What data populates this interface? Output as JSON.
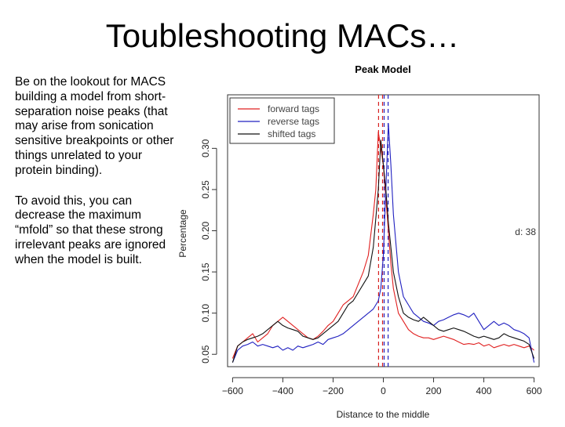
{
  "slide": {
    "title": "Toubleshooting MACs…",
    "paragraph1": "Be on the lookout for MACS building a model from short-separation noise peaks (that may arise from sonication sensitive breakpoints or other things unrelated to your protein binding).",
    "paragraph2": "To avoid this, you can decrease the maximum “mfold” so that these strong irrelevant peaks are ignored when the model is built."
  },
  "chart_data": {
    "type": "line",
    "title": "Peak Model",
    "xlabel": "Distance to the middle",
    "ylabel": "Percentage",
    "xlim": [
      -620,
      620
    ],
    "ylim": [
      0.035,
      0.365
    ],
    "xticks": [
      -600,
      -400,
      -200,
      0,
      200,
      400,
      600
    ],
    "xtick_labels": [
      "−600",
      "−400",
      "−200",
      "0",
      "200",
      "400",
      "600"
    ],
    "yticks": [
      0.05,
      0.1,
      0.15,
      0.2,
      0.25,
      0.3
    ],
    "ytick_labels": [
      "0.05",
      "0.10",
      "0.15",
      "0.20",
      "0.25",
      "0.30"
    ],
    "annotation": "d: 38",
    "legend_position": "top-left",
    "grid": false,
    "vlines": [
      {
        "x": -19,
        "color": "#d62020"
      },
      {
        "x": 0,
        "color": "#d62020"
      },
      {
        "x": 0,
        "color": "#2020c0"
      },
      {
        "x": 19,
        "color": "#2020c0"
      }
    ],
    "series": [
      {
        "name": "forward tags",
        "color": "#e02020",
        "x": [
          -600,
          -580,
          -560,
          -540,
          -520,
          -500,
          -480,
          -460,
          -440,
          -420,
          -400,
          -380,
          -360,
          -340,
          -320,
          -300,
          -280,
          -260,
          -240,
          -220,
          -200,
          -180,
          -160,
          -140,
          -120,
          -100,
          -80,
          -60,
          -40,
          -30,
          -20,
          -10,
          0,
          10,
          20,
          30,
          40,
          60,
          80,
          100,
          120,
          140,
          160,
          180,
          200,
          220,
          240,
          260,
          280,
          300,
          320,
          340,
          360,
          380,
          400,
          420,
          440,
          460,
          480,
          500,
          520,
          540,
          560,
          580,
          600
        ],
        "values": [
          0.045,
          0.06,
          0.065,
          0.07,
          0.075,
          0.065,
          0.07,
          0.075,
          0.085,
          0.09,
          0.095,
          0.09,
          0.085,
          0.08,
          0.075,
          0.07,
          0.068,
          0.072,
          0.078,
          0.085,
          0.09,
          0.1,
          0.11,
          0.115,
          0.12,
          0.135,
          0.15,
          0.17,
          0.22,
          0.25,
          0.32,
          0.3,
          0.28,
          0.24,
          0.2,
          0.16,
          0.13,
          0.1,
          0.09,
          0.08,
          0.075,
          0.072,
          0.07,
          0.07,
          0.068,
          0.07,
          0.072,
          0.07,
          0.068,
          0.065,
          0.062,
          0.063,
          0.062,
          0.064,
          0.06,
          0.062,
          0.058,
          0.06,
          0.062,
          0.06,
          0.062,
          0.06,
          0.058,
          0.06,
          0.055
        ]
      },
      {
        "name": "reverse tags",
        "color": "#2020c0",
        "x": [
          -600,
          -580,
          -560,
          -540,
          -520,
          -500,
          -480,
          -460,
          -440,
          -420,
          -400,
          -380,
          -360,
          -340,
          -320,
          -300,
          -280,
          -260,
          -240,
          -220,
          -200,
          -180,
          -160,
          -140,
          -120,
          -100,
          -80,
          -60,
          -40,
          -20,
          -10,
          0,
          10,
          20,
          30,
          40,
          60,
          80,
          100,
          120,
          140,
          160,
          180,
          200,
          220,
          240,
          260,
          280,
          300,
          320,
          340,
          360,
          380,
          400,
          420,
          440,
          460,
          480,
          500,
          520,
          540,
          560,
          580,
          600
        ],
        "values": [
          0.04,
          0.055,
          0.06,
          0.062,
          0.065,
          0.06,
          0.062,
          0.06,
          0.058,
          0.06,
          0.055,
          0.058,
          0.055,
          0.06,
          0.058,
          0.06,
          0.062,
          0.065,
          0.062,
          0.068,
          0.07,
          0.072,
          0.075,
          0.08,
          0.085,
          0.09,
          0.095,
          0.1,
          0.105,
          0.115,
          0.13,
          0.17,
          0.25,
          0.33,
          0.28,
          0.22,
          0.15,
          0.12,
          0.11,
          0.1,
          0.095,
          0.09,
          0.088,
          0.085,
          0.09,
          0.092,
          0.095,
          0.098,
          0.1,
          0.098,
          0.095,
          0.1,
          0.09,
          0.08,
          0.085,
          0.09,
          0.085,
          0.088,
          0.085,
          0.08,
          0.078,
          0.075,
          0.07,
          0.04
        ]
      },
      {
        "name": "shifted tags",
        "color": "#111111",
        "x": [
          -600,
          -580,
          -560,
          -540,
          -520,
          -500,
          -480,
          -460,
          -440,
          -420,
          -400,
          -380,
          -360,
          -340,
          -320,
          -300,
          -280,
          -260,
          -240,
          -220,
          -200,
          -180,
          -160,
          -140,
          -120,
          -100,
          -80,
          -60,
          -40,
          -20,
          -10,
          0,
          10,
          20,
          40,
          60,
          80,
          100,
          120,
          140,
          160,
          180,
          200,
          220,
          240,
          260,
          280,
          300,
          320,
          340,
          360,
          380,
          400,
          420,
          440,
          460,
          480,
          500,
          520,
          540,
          560,
          580,
          600
        ],
        "values": [
          0.04,
          0.06,
          0.065,
          0.068,
          0.07,
          0.072,
          0.075,
          0.08,
          0.085,
          0.09,
          0.085,
          0.082,
          0.08,
          0.078,
          0.072,
          0.07,
          0.068,
          0.07,
          0.075,
          0.08,
          0.085,
          0.09,
          0.1,
          0.11,
          0.115,
          0.125,
          0.135,
          0.145,
          0.18,
          0.25,
          0.31,
          0.28,
          0.25,
          0.21,
          0.15,
          0.12,
          0.1,
          0.095,
          0.092,
          0.09,
          0.095,
          0.09,
          0.085,
          0.08,
          0.078,
          0.08,
          0.082,
          0.08,
          0.078,
          0.075,
          0.072,
          0.07,
          0.072,
          0.07,
          0.068,
          0.07,
          0.075,
          0.072,
          0.07,
          0.068,
          0.066,
          0.062,
          0.045
        ]
      }
    ]
  }
}
